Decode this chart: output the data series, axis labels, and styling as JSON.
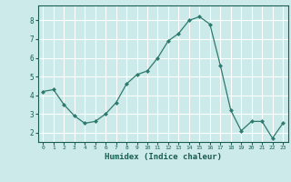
{
  "x": [
    0,
    1,
    2,
    3,
    4,
    5,
    6,
    7,
    8,
    9,
    10,
    11,
    12,
    13,
    14,
    15,
    16,
    17,
    18,
    19,
    20,
    21,
    22,
    23
  ],
  "y": [
    4.2,
    4.3,
    3.5,
    2.9,
    2.5,
    2.6,
    3.0,
    3.6,
    4.6,
    5.1,
    5.3,
    6.0,
    6.9,
    7.3,
    8.0,
    8.2,
    7.8,
    5.6,
    3.2,
    2.1,
    2.6,
    2.6,
    1.7,
    2.5
  ],
  "xlabel": "Humidex (Indice chaleur)",
  "ylim": [
    1.5,
    8.8
  ],
  "xlim": [
    -0.5,
    23.5
  ],
  "yticks": [
    2,
    3,
    4,
    5,
    6,
    7,
    8
  ],
  "xticks": [
    0,
    1,
    2,
    3,
    4,
    5,
    6,
    7,
    8,
    9,
    10,
    11,
    12,
    13,
    14,
    15,
    16,
    17,
    18,
    19,
    20,
    21,
    22,
    23
  ],
  "line_color": "#2d7a6e",
  "marker_color": "#2d7a6e",
  "bg_color": "#cceaea",
  "grid_color": "#ffffff",
  "axis_label_color": "#1a5c52",
  "tick_color": "#1a5c52"
}
